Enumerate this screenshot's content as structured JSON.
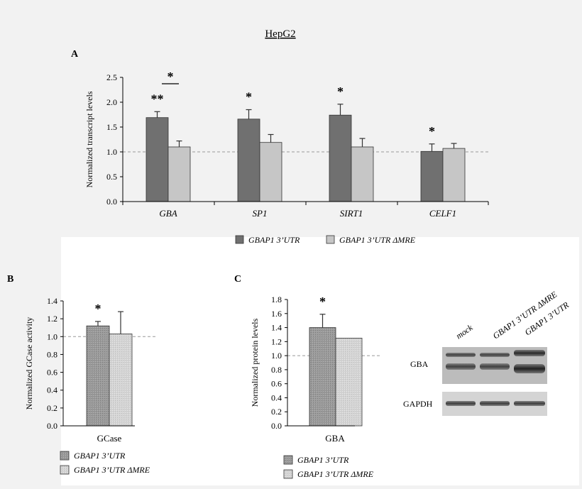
{
  "figure": {
    "title": "HepG2"
  },
  "colors": {
    "series1": "#707070",
    "series2": "#c6c6c6",
    "background": "#f2f2f2",
    "panel": "#ffffff",
    "refline": "#999999"
  },
  "blot": {
    "lanes": [
      "mock",
      "GBAP1 3’UTR ΔMRE",
      "GBAP1 3’UTR"
    ],
    "rows": [
      "GBA",
      "GAPDH"
    ]
  },
  "chart_data": [
    {
      "panel": "A",
      "type": "bar",
      "title": "",
      "ylabel": "Normalized transcript levels",
      "xlabel": "",
      "ylim": [
        0,
        2.5
      ],
      "yticks": [
        "0.0",
        "0.5",
        "1.0",
        "1.5",
        "2.0",
        "2.5"
      ],
      "categories": [
        "GBA",
        "SP1",
        "SIRT1",
        "CELF1"
      ],
      "series": [
        {
          "name": "GBAP1 3’UTR",
          "values": [
            1.69,
            1.66,
            1.74,
            1.01
          ],
          "errors": [
            0.12,
            0.19,
            0.22,
            0.15
          ]
        },
        {
          "name": "GBAP1 3’UTR ΔMRE",
          "values": [
            1.1,
            1.19,
            1.1,
            1.07
          ],
          "errors": [
            0.12,
            0.16,
            0.17,
            0.1
          ]
        }
      ],
      "reference_line": 1.0,
      "annotations": [
        "**",
        "*",
        "*",
        "*"
      ],
      "legend_position": "bottom"
    },
    {
      "panel": "B",
      "type": "bar",
      "title": "",
      "ylabel": "Normalized GCase activity",
      "xlabel": "",
      "ylim": [
        0,
        1.4
      ],
      "yticks": [
        "0.0",
        "0.2",
        "0.4",
        "0.6",
        "0.8",
        "1.0",
        "1.2",
        "1.4"
      ],
      "categories": [
        "GCase"
      ],
      "series": [
        {
          "name": "GBAP1 3’UTR",
          "values": [
            1.12
          ],
          "errors": [
            0.05
          ]
        },
        {
          "name": "GBAP1 3’UTR ΔMRE",
          "values": [
            1.03
          ],
          "errors": [
            0.25
          ]
        }
      ],
      "reference_line": 1.0,
      "annotations": [
        "*"
      ],
      "legend_position": "bottom"
    },
    {
      "panel": "C",
      "type": "bar",
      "title": "",
      "ylabel": "Normalized protein levels",
      "xlabel": "",
      "ylim": [
        0,
        1.8
      ],
      "yticks": [
        "0.0",
        "0.2",
        "0.4",
        "0.6",
        "0.8",
        "1.0",
        "1.2",
        "1.4",
        "1.6",
        "1.8"
      ],
      "categories": [
        "GBA"
      ],
      "series": [
        {
          "name": "GBAP1 3’UTR",
          "values": [
            1.4
          ],
          "errors": [
            0.19
          ]
        },
        {
          "name": "GBAP1 3’UTR ΔMRE",
          "values": [
            1.25
          ],
          "errors": [
            0
          ]
        }
      ],
      "reference_line": 1.0,
      "annotations": [
        "*"
      ],
      "legend_position": "bottom"
    }
  ]
}
